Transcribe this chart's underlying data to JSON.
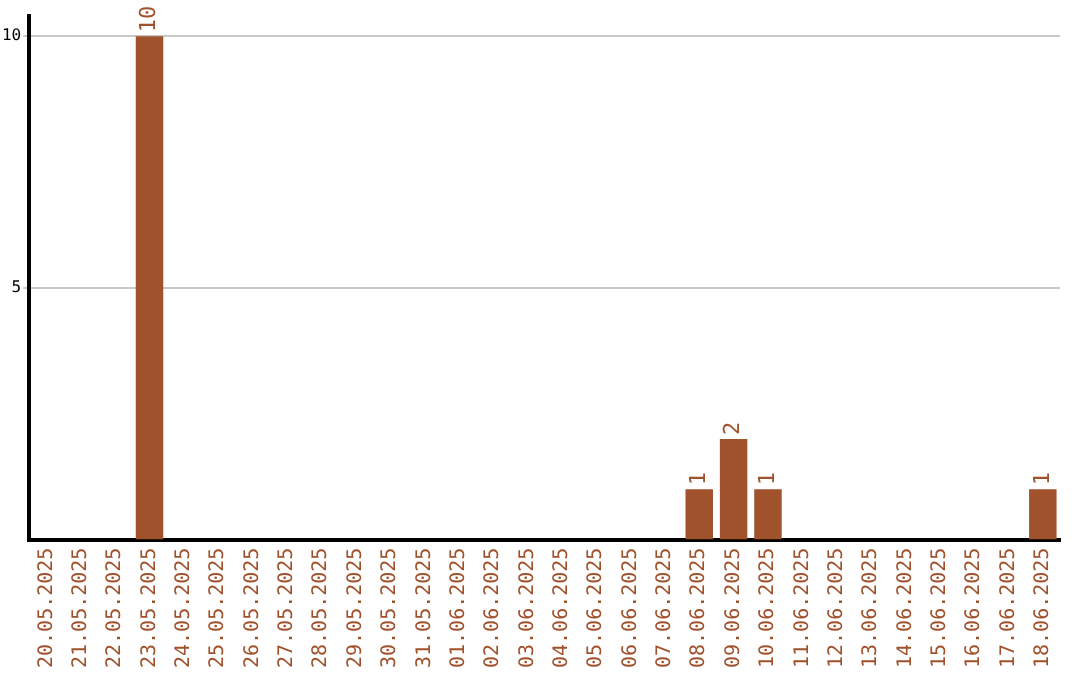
{
  "chart_data": {
    "type": "bar",
    "categories": [
      "20.05.2025",
      "21.05.2025",
      "22.05.2025",
      "23.05.2025",
      "24.05.2025",
      "25.05.2025",
      "26.05.2025",
      "27.05.2025",
      "28.05.2025",
      "29.05.2025",
      "30.05.2025",
      "31.05.2025",
      "01.06.2025",
      "02.06.2025",
      "03.06.2025",
      "04.06.2025",
      "05.06.2025",
      "06.06.2025",
      "07.06.2025",
      "08.06.2025",
      "09.06.2025",
      "10.06.2025",
      "11.06.2025",
      "12.06.2025",
      "13.06.2025",
      "14.06.2025",
      "15.06.2025",
      "16.06.2025",
      "17.06.2025",
      "18.06.2025"
    ],
    "values": [
      0,
      0,
      0,
      10,
      0,
      0,
      0,
      0,
      0,
      0,
      0,
      0,
      0,
      0,
      0,
      0,
      0,
      0,
      0,
      1,
      2,
      1,
      0,
      0,
      0,
      0,
      0,
      0,
      0,
      1
    ],
    "value_labels": [
      null,
      null,
      null,
      "10",
      null,
      null,
      null,
      null,
      null,
      null,
      null,
      null,
      null,
      null,
      null,
      null,
      null,
      null,
      null,
      "1",
      "2",
      "1",
      null,
      null,
      null,
      null,
      null,
      null,
      null,
      "1"
    ],
    "color": "#a0522d",
    "ylim": [
      0,
      10.4
    ],
    "yticks": [
      5,
      10
    ],
    "grid": "y",
    "legend": false
  }
}
